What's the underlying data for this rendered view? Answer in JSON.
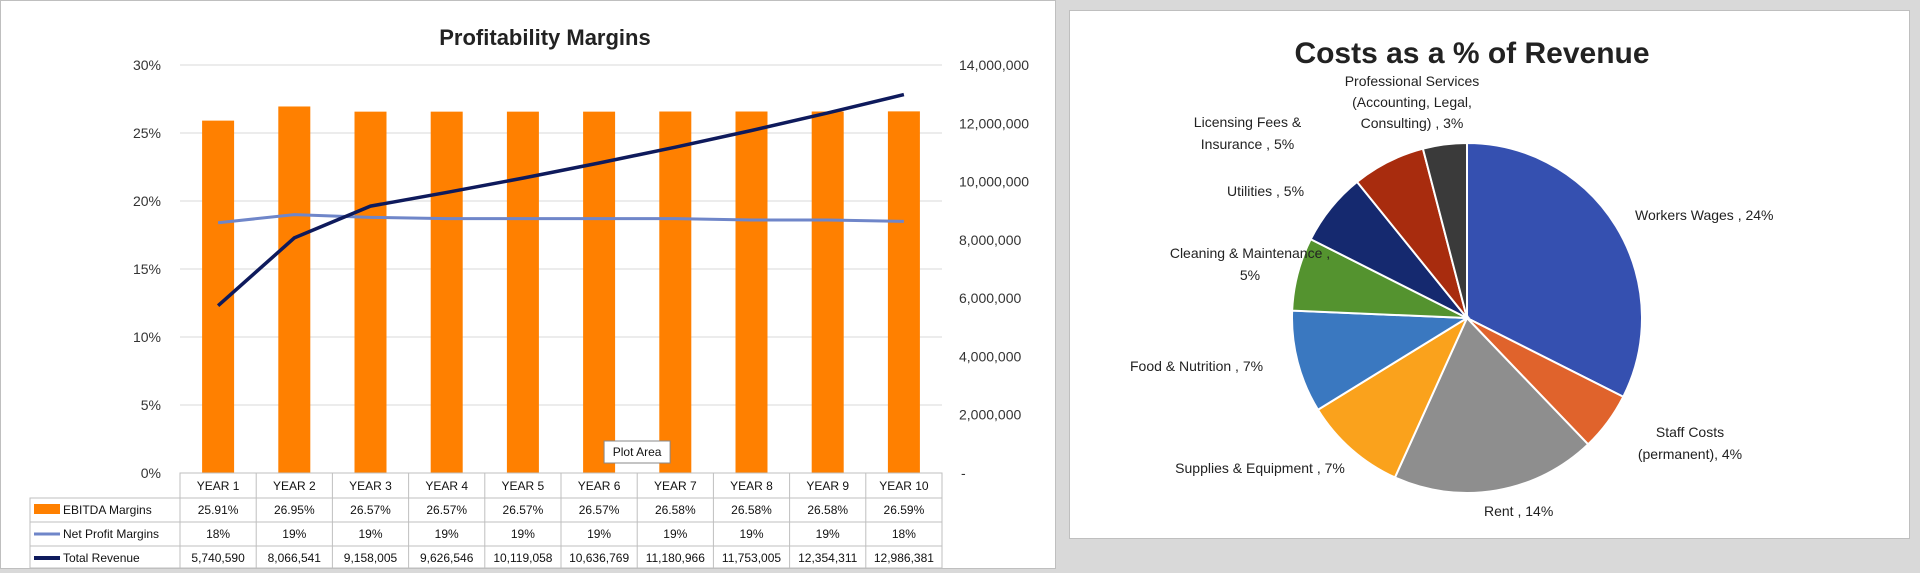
{
  "chart_data": [
    {
      "type": "bar+line",
      "title": "Profitability Margins",
      "categories": [
        "YEAR 1",
        "YEAR 2",
        "YEAR 3",
        "YEAR 4",
        "YEAR 5",
        "YEAR 6",
        "YEAR 7",
        "YEAR 8",
        "YEAR 9",
        "YEAR 10"
      ],
      "y_left": {
        "ylim": [
          0,
          30
        ],
        "ticks": [
          "0%",
          "5%",
          "10%",
          "15%",
          "20%",
          "25%",
          "30%"
        ]
      },
      "y_right": {
        "ylim": [
          0,
          14000000
        ],
        "ticks": [
          "-",
          "2,000,000",
          "4,000,000",
          "6,000,000",
          "8,000,000",
          "10,000,000",
          "12,000,000",
          "14,000,000"
        ]
      },
      "grid": true,
      "legend": "data-table",
      "series": [
        {
          "name": "EBITDA Margins",
          "type": "bar",
          "axis": "left",
          "color": "#FF8000",
          "values": [
            25.91,
            26.95,
            26.57,
            26.57,
            26.57,
            26.57,
            26.58,
            26.58,
            26.58,
            26.59
          ],
          "labels": [
            "25.91%",
            "26.95%",
            "26.57%",
            "26.57%",
            "26.57%",
            "26.57%",
            "26.58%",
            "26.58%",
            "26.58%",
            "26.59%"
          ]
        },
        {
          "name": "Net Profit Margins",
          "type": "line",
          "axis": "left",
          "color": "#6F86C9",
          "values": [
            18.4,
            19.0,
            18.8,
            18.7,
            18.7,
            18.7,
            18.7,
            18.6,
            18.6,
            18.5
          ],
          "labels": [
            "18%",
            "19%",
            "19%",
            "19%",
            "19%",
            "19%",
            "19%",
            "19%",
            "19%",
            "18%"
          ]
        },
        {
          "name": "Total Revenue",
          "type": "line",
          "axis": "right",
          "color": "#0E1A5C",
          "values": [
            5740590,
            8066541,
            9158005,
            9626546,
            10119058,
            10636769,
            11180966,
            11753005,
            12354311,
            12986381
          ],
          "labels": [
            "5,740,590",
            "8,066,541",
            "9,158,005",
            "9,626,546",
            "10,119,058",
            "10,636,769",
            "11,180,966",
            "11,753,005",
            "12,354,311",
            "12,986,381"
          ]
        }
      ],
      "tooltip": "Plot Area"
    },
    {
      "type": "pie",
      "title": "Costs as a % of Revenue",
      "slices": [
        {
          "label": "Workers Wages , 24%",
          "value": 24,
          "color": "#3550B0"
        },
        {
          "label": "Staff Costs (permanent), 4%",
          "value": 4,
          "color": "#E0632C"
        },
        {
          "label": "Rent , 14%",
          "value": 14,
          "color": "#8E8E8E"
        },
        {
          "label": "Supplies & Equipment , 7%",
          "value": 7,
          "color": "#FAA21C"
        },
        {
          "label": "Food & Nutrition , 7%",
          "value": 7,
          "color": "#3A78C0"
        },
        {
          "label": "Cleaning & Maintenance , 5%",
          "value": 5,
          "color": "#54932F"
        },
        {
          "label": "Utilities , 5%",
          "value": 5,
          "color": "#15296F"
        },
        {
          "label": "Licensing Fees & Insurance , 5%",
          "value": 5,
          "color": "#A82C0E"
        },
        {
          "label": "Professional Services (Accounting, Legal, Consulting) , 3%",
          "value": 3,
          "color": "#3A3A3A"
        }
      ]
    }
  ]
}
